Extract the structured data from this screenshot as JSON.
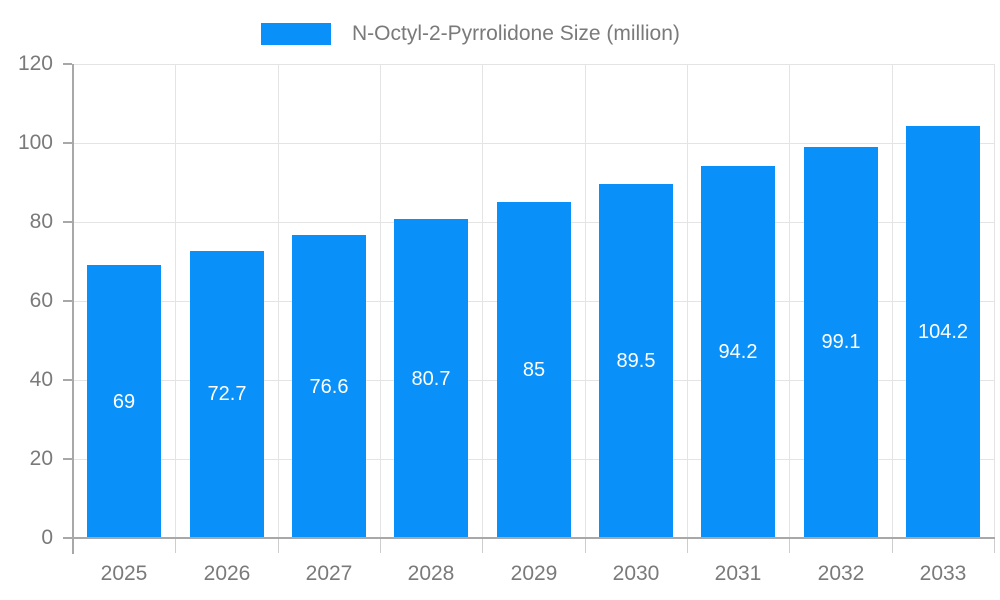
{
  "chart_data": {
    "type": "bar",
    "title": "N-Octyl-2-Pyrrolidone Size (million)",
    "categories": [
      "2025",
      "2026",
      "2027",
      "2028",
      "2029",
      "2030",
      "2031",
      "2032",
      "2033"
    ],
    "series": [
      {
        "name": "N-Octyl-2-Pyrrolidone Size (million)",
        "values": [
          69,
          72.7,
          76.6,
          80.7,
          85,
          89.5,
          94.2,
          99.1,
          104.2
        ]
      }
    ],
    "value_labels": [
      "69",
      "72.7",
      "76.6",
      "80.7",
      "85",
      "89.5",
      "94.2",
      "99.1",
      "104.2"
    ],
    "value_label_position": "inside-center",
    "xlabel": "",
    "ylabel": "",
    "ylim": [
      0,
      120
    ],
    "yticks": [
      0,
      20,
      40,
      60,
      80,
      100,
      120
    ],
    "grid": true,
    "legend_position": "top"
  },
  "colors": {
    "bar": "#0990f9",
    "axis_line": "#a8a8a8",
    "gridline": "#e4e4e4",
    "x_tick": "#cdcdcd",
    "label_text": "#7a7a7a",
    "bar_value_text": "#ffffff"
  }
}
